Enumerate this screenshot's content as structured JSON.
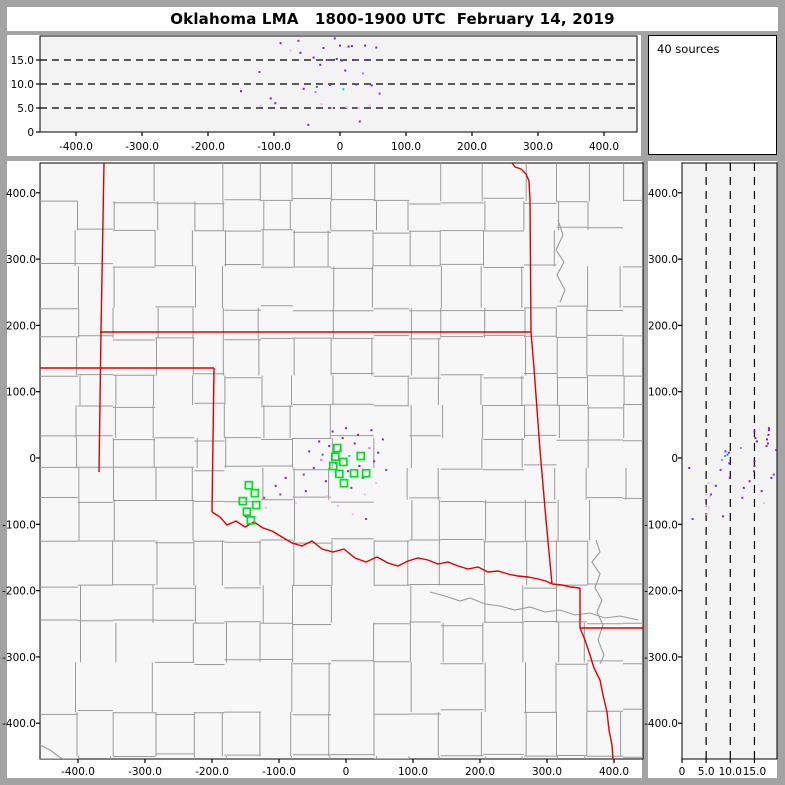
{
  "title": "Oklahoma LMA   1800-1900 UTC  February 14, 2019",
  "sources_box": {
    "label": "40 sources"
  },
  "colors": {
    "window_border": "#a3a3a3",
    "panel_bg": "#ffffff",
    "plot_bg": "#f3f3f3",
    "map_bg": "#f7f7f7",
    "county_line": "#9a9a9a",
    "state_border": "#dd0000",
    "station_green": "#00dd22",
    "grid_dash": "#000000",
    "source_palette": [
      "#7a1fd0",
      "#8a2be2",
      "#b07fe8",
      "#f2b6ee",
      "#4d5fe3",
      "#19c3c3"
    ]
  },
  "chart_data": {
    "type": "scatter",
    "source_count": 40,
    "panels": [
      {
        "id": "alt_vs_ew",
        "description": "altitude (km) vs east-west distance (km)",
        "xlim": [
          -455,
          450
        ],
        "ylim": [
          0,
          20
        ],
        "x_tick_values": [
          -400,
          -300,
          -200,
          -100,
          0,
          100,
          200,
          300,
          400
        ],
        "x_tick_labels": [
          "-400.0",
          "-300.0",
          "-200.0",
          "-100.0",
          "0",
          "100.0",
          "200.0",
          "300.0",
          "400.0"
        ],
        "y_tick_values": [
          0,
          5,
          10,
          15
        ],
        "y_tick_labels": [
          "0",
          "5.0",
          "10.0",
          "15.0"
        ],
        "grid": "dashed horizontal lines at 5, 10, 15 km"
      },
      {
        "id": "plan_view",
        "description": "plan view map, north-south vs east-west distance (km)",
        "xlim": [
          -457,
          443
        ],
        "ylim": [
          -454,
          445
        ],
        "x_tick_values": [
          -400,
          -300,
          -200,
          -100,
          0,
          100,
          200,
          300,
          400
        ],
        "x_tick_labels": [
          "-400.0",
          "-300.0",
          "-200.0",
          "-100.0",
          "0",
          "100.0",
          "200.0",
          "300.0",
          "400.0"
        ],
        "y_tick_values": [
          400,
          300,
          200,
          100,
          0,
          -100,
          -200,
          -300,
          -400
        ],
        "y_tick_labels": [
          "400.0",
          "300.0",
          "200.0",
          "100.0",
          "0",
          "-100.0",
          "-200.0",
          "-300.0",
          "-400.0"
        ],
        "grid": "county boundaries gray, state boundaries red"
      },
      {
        "id": "alt_vs_ns",
        "description": "north-south distance (km) vs altitude (km)",
        "xlim": [
          0,
          19.7
        ],
        "ylim": [
          -454,
          445
        ],
        "x_tick_values": [
          0,
          5,
          10,
          15
        ],
        "x_tick_labels": [
          "0",
          "5.0",
          "10.0",
          "15.0"
        ],
        "y_tick_values": [
          400,
          300,
          200,
          100,
          0,
          -100,
          -200,
          -300,
          -400
        ],
        "y_tick_labels": [
          "400.0",
          "300.0",
          "200.0",
          "100.0",
          "0",
          "-100.0",
          "-200.0",
          "-300.0",
          "-400.0"
        ],
        "grid": "dashed vertical lines at 5, 10, 15 km"
      }
    ],
    "sources_xyz_color": [
      [
        -150,
        -88,
        8.5,
        0
      ],
      [
        -122,
        -60,
        12.5,
        1
      ],
      [
        -120,
        -75,
        5.5,
        3
      ],
      [
        -105,
        -42,
        7.0,
        0
      ],
      [
        -98,
        -55,
        6.0,
        1
      ],
      [
        -90,
        -30,
        18.5,
        0
      ],
      [
        -75,
        -68,
        17.0,
        3
      ],
      [
        -63,
        -25,
        19.0,
        1
      ],
      [
        -60,
        -50,
        16.5,
        0
      ],
      [
        -55,
        10,
        9.0,
        0
      ],
      [
        -48,
        -15,
        1.5,
        0
      ],
      [
        -40,
        25,
        15.5,
        0
      ],
      [
        -35,
        5,
        9.4,
        4
      ],
      [
        -30,
        -35,
        14.0,
        0
      ],
      [
        -28,
        -58,
        5.8,
        3
      ],
      [
        -25,
        18,
        17.5,
        0
      ],
      [
        -20,
        40,
        15.0,
        0
      ],
      [
        -15,
        -8,
        9.8,
        0
      ],
      [
        -12,
        -72,
        5.0,
        3
      ],
      [
        -8,
        12,
        19.5,
        0
      ],
      [
        -5,
        30,
        15.2,
        0
      ],
      [
        0,
        45,
        18.0,
        0
      ],
      [
        3,
        -20,
        14.9,
        0
      ],
      [
        5,
        3,
        8.9,
        5
      ],
      [
        8,
        -45,
        12.8,
        0
      ],
      [
        10,
        -85,
        5.2,
        3
      ],
      [
        13,
        22,
        17.8,
        0
      ],
      [
        18,
        35,
        17.9,
        0
      ],
      [
        20,
        -12,
        15.0,
        0
      ],
      [
        25,
        -30,
        9.9,
        0
      ],
      [
        28,
        -55,
        5.0,
        3
      ],
      [
        30,
        -92,
        2.2,
        1
      ],
      [
        35,
        15,
        12.2,
        2
      ],
      [
        38,
        42,
        18.0,
        0
      ],
      [
        42,
        -5,
        15.0,
        0
      ],
      [
        45,
        -38,
        5.5,
        3
      ],
      [
        48,
        8,
        9.7,
        0
      ],
      [
        55,
        28,
        17.6,
        0
      ],
      [
        60,
        -18,
        8.0,
        1
      ],
      [
        -37,
        -3,
        8.3,
        2
      ]
    ],
    "stations_xy": [
      [
        -13,
        15
      ],
      [
        -16,
        2
      ],
      [
        22,
        3
      ],
      [
        -19,
        -12
      ],
      [
        -4,
        -6
      ],
      [
        12,
        -23
      ],
      [
        -10,
        -24
      ],
      [
        -3,
        -38
      ],
      [
        30,
        -23
      ],
      [
        -145,
        -41
      ],
      [
        -136,
        -53
      ],
      [
        -154,
        -65
      ],
      [
        -134,
        -71
      ],
      [
        -148,
        -81
      ],
      [
        -142,
        -94
      ]
    ]
  }
}
